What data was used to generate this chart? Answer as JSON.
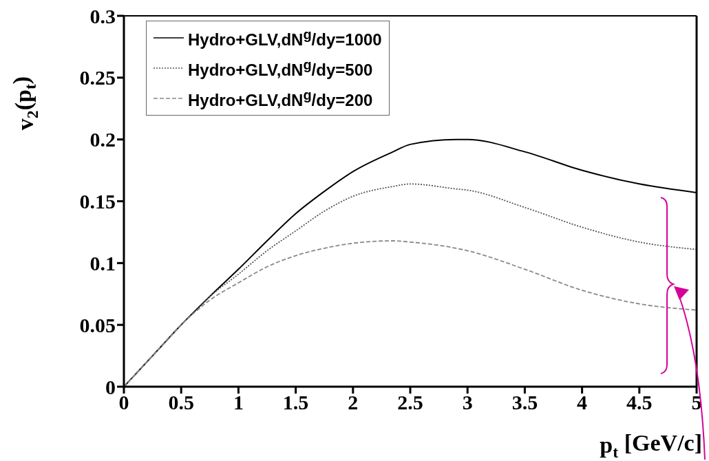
{
  "chart_data": {
    "type": "line",
    "xlabel": "p$_{t}$ [GeV/c]",
    "ylabel": "v$_{2}$(p$_{t}$)",
    "x": [
      0,
      0.25,
      0.5,
      0.75,
      1,
      1.25,
      1.5,
      1.75,
      2,
      2.35,
      2.5,
      2.9,
      3,
      3.5,
      4,
      4.5,
      5
    ],
    "series": [
      {
        "name": "Hydro+GLV,dN$^{g}$/dy=1000",
        "color": "#000000",
        "line_style": "solid",
        "values": [
          0,
          0.025,
          0.05,
          0.073,
          0.095,
          0.118,
          0.14,
          0.158,
          0.174,
          0.19,
          0.196,
          0.2,
          0.2,
          0.19,
          0.175,
          0.164,
          0.157
        ]
      },
      {
        "name": "Hydro+GLV,dN$^{g}$/dy=500",
        "color": "#555555",
        "line_style": "dotted",
        "values": [
          0,
          0.025,
          0.05,
          0.073,
          0.091,
          0.11,
          0.126,
          0.142,
          0.154,
          0.162,
          0.164,
          0.16,
          0.159,
          0.145,
          0.129,
          0.117,
          0.111
        ]
      },
      {
        "name": "Hydro+GLV,dN$^{g}$/dy=200",
        "color": "#888888",
        "line_style": "dashed",
        "values": [
          0,
          0.025,
          0.05,
          0.07,
          0.084,
          0.097,
          0.106,
          0.112,
          0.116,
          0.118,
          0.117,
          0.112,
          0.11,
          0.095,
          0.078,
          0.067,
          0.062
        ]
      }
    ],
    "xlim": [
      0,
      5
    ],
    "xticks": [
      0,
      0.5,
      1,
      1.5,
      2,
      2.5,
      3,
      3.5,
      4,
      4.5,
      5
    ],
    "ylim": [
      0,
      0.3
    ],
    "yticks": [
      0,
      0.05,
      0.1,
      0.15,
      0.2,
      0.25,
      0.3
    ],
    "legend": "top left",
    "grid": false,
    "marker": "none"
  }
}
